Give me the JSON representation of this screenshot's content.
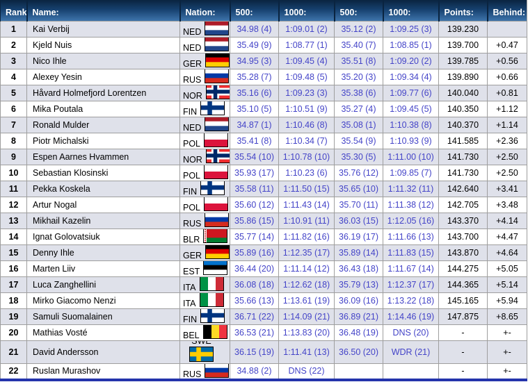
{
  "table": {
    "columns": [
      "Rank:",
      "Name:",
      "Nation:",
      "500:",
      "1000:",
      "500:",
      "1000:",
      "Points:",
      "Behind:"
    ],
    "rows": [
      {
        "rank": "1",
        "name": "Kai Verbij",
        "nation": "NED",
        "r500a": "34.98 (4)",
        "r1000a": "1:09.01 (2)",
        "r500b": "35.12 (2)",
        "r1000b": "1:09.25 (3)",
        "points": "139.230",
        "behind": ""
      },
      {
        "rank": "2",
        "name": "Kjeld Nuis",
        "nation": "NED",
        "r500a": "35.49 (9)",
        "r1000a": "1:08.77 (1)",
        "r500b": "35.40 (7)",
        "r1000b": "1:08.85 (1)",
        "points": "139.700",
        "behind": "+0.47"
      },
      {
        "rank": "3",
        "name": "Nico Ihle",
        "nation": "GER",
        "r500a": "34.95 (3)",
        "r1000a": "1:09.45 (4)",
        "r500b": "35.51 (8)",
        "r1000b": "1:09.20 (2)",
        "points": "139.785",
        "behind": "+0.56"
      },
      {
        "rank": "4",
        "name": "Alexey Yesin",
        "nation": "RUS",
        "r500a": "35.28 (7)",
        "r1000a": "1:09.48 (5)",
        "r500b": "35.20 (3)",
        "r1000b": "1:09.34 (4)",
        "points": "139.890",
        "behind": "+0.66"
      },
      {
        "rank": "5",
        "name": "Håvard Holmefjord Lorentzen",
        "nation": "NOR",
        "r500a": "35.16 (6)",
        "r1000a": "1:09.23 (3)",
        "r500b": "35.38 (6)",
        "r1000b": "1:09.77 (6)",
        "points": "140.040",
        "behind": "+0.81"
      },
      {
        "rank": "6",
        "name": "Mika Poutala",
        "nation": "FIN",
        "r500a": "35.10 (5)",
        "r1000a": "1:10.51 (9)",
        "r500b": "35.27 (4)",
        "r1000b": "1:09.45 (5)",
        "points": "140.350",
        "behind": "+1.12"
      },
      {
        "rank": "7",
        "name": "Ronald Mulder",
        "nation": "NED",
        "r500a": "34.87 (1)",
        "r1000a": "1:10.46 (8)",
        "r500b": "35.08 (1)",
        "r1000b": "1:10.38 (8)",
        "points": "140.370",
        "behind": "+1.14"
      },
      {
        "rank": "8",
        "name": "Piotr Michalski",
        "nation": "POL",
        "r500a": "35.41 (8)",
        "r1000a": "1:10.34 (7)",
        "r500b": "35.54 (9)",
        "r1000b": "1:10.93 (9)",
        "points": "141.585",
        "behind": "+2.36"
      },
      {
        "rank": "9",
        "name": "Espen Aarnes Hvammen",
        "nation": "NOR",
        "r500a": "35.54 (10)",
        "r1000a": "1:10.78 (10)",
        "r500b": "35.30 (5)",
        "r1000b": "1:11.00 (10)",
        "points": "141.730",
        "behind": "+2.50"
      },
      {
        "rank": "10",
        "name": "Sebastian Klosinski",
        "nation": "POL",
        "r500a": "35.93 (17)",
        "r1000a": "1:10.23 (6)",
        "r500b": "35.76 (12)",
        "r1000b": "1:09.85 (7)",
        "points": "141.730",
        "behind": "+2.50"
      },
      {
        "rank": "11",
        "name": "Pekka Koskela",
        "nation": "FIN",
        "r500a": "35.58 (11)",
        "r1000a": "1:11.50 (15)",
        "r500b": "35.65 (10)",
        "r1000b": "1:11.32 (11)",
        "points": "142.640",
        "behind": "+3.41"
      },
      {
        "rank": "12",
        "name": "Artur Nogal",
        "nation": "POL",
        "r500a": "35.60 (12)",
        "r1000a": "1:11.43 (14)",
        "r500b": "35.70 (11)",
        "r1000b": "1:11.38 (12)",
        "points": "142.705",
        "behind": "+3.48"
      },
      {
        "rank": "13",
        "name": "Mikhail Kazelin",
        "nation": "RUS",
        "r500a": "35.86 (15)",
        "r1000a": "1:10.91 (11)",
        "r500b": "36.03 (15)",
        "r1000b": "1:12.05 (16)",
        "points": "143.370",
        "behind": "+4.14"
      },
      {
        "rank": "14",
        "name": "Ignat Golovatsiuk",
        "nation": "BLR",
        "r500a": "35.77 (14)",
        "r1000a": "1:11.82 (16)",
        "r500b": "36.19 (17)",
        "r1000b": "1:11.66 (13)",
        "points": "143.700",
        "behind": "+4.47"
      },
      {
        "rank": "15",
        "name": "Denny Ihle",
        "nation": "GER",
        "r500a": "35.89 (16)",
        "r1000a": "1:12.35 (17)",
        "r500b": "35.89 (14)",
        "r1000b": "1:11.83 (15)",
        "points": "143.870",
        "behind": "+4.64"
      },
      {
        "rank": "16",
        "name": "Marten Liiv",
        "nation": "EST",
        "r500a": "36.44 (20)",
        "r1000a": "1:11.14 (12)",
        "r500b": "36.43 (18)",
        "r1000b": "1:11.67 (14)",
        "points": "144.275",
        "behind": "+5.05"
      },
      {
        "rank": "17",
        "name": "Luca Zanghellini",
        "nation": "ITA",
        "r500a": "36.08 (18)",
        "r1000a": "1:12.62 (18)",
        "r500b": "35.79 (13)",
        "r1000b": "1:12.37 (17)",
        "points": "144.365",
        "behind": "+5.14"
      },
      {
        "rank": "18",
        "name": "Mirko Giacomo Nenzi",
        "nation": "ITA",
        "r500a": "35.66 (13)",
        "r1000a": "1:13.61 (19)",
        "r500b": "36.09 (16)",
        "r1000b": "1:13.22 (18)",
        "points": "145.165",
        "behind": "+5.94"
      },
      {
        "rank": "19",
        "name": "Samuli Suomalainen",
        "nation": "FIN",
        "r500a": "36.71 (22)",
        "r1000a": "1:14.09 (21)",
        "r500b": "36.89 (21)",
        "r1000b": "1:14.46 (19)",
        "points": "147.875",
        "behind": "+8.65"
      },
      {
        "rank": "20",
        "name": "Mathias Vosté",
        "nation": "BEL",
        "r500a": "36.53 (21)",
        "r1000a": "1:13.83 (20)",
        "r500b": "36.48 (19)",
        "r1000b": "DNS (20)",
        "points": "-",
        "behind": "+-"
      },
      {
        "rank": "21",
        "name": "David Andersson",
        "nation": "SWE",
        "nation_stacked": true,
        "r500a": "36.15 (19)",
        "r1000a": "1:11.41 (13)",
        "r500b": "36.50 (20)",
        "r1000b": "WDR (21)",
        "points": "-",
        "behind": "+-"
      },
      {
        "rank": "22",
        "name": "Ruslan Murashov",
        "nation": "RUS",
        "r500a": "34.88 (2)",
        "r1000a": "DNS (22)",
        "r500b": "",
        "r1000b": "",
        "points": "-",
        "behind": "+-"
      }
    ]
  },
  "colors": {
    "header_gradient_top": "#0a2440",
    "header_gradient_mid": "#16406e",
    "header_gradient_bottom": "#3e74ab",
    "header_text": "#ffffff",
    "row_odd_bg": "#dfe1ea",
    "row_even_bg": "#ffffff",
    "grid_line": "#9e9e9e",
    "time_link": "#4444c8",
    "bottom_border": "#2333ab",
    "body_text": "#000000"
  },
  "flags": {
    "NED": {
      "type": "h",
      "colors": [
        "#AE1C28",
        "#FFFFFF",
        "#21468B"
      ]
    },
    "GER": {
      "type": "h",
      "colors": [
        "#000000",
        "#DD0000",
        "#FFCE00"
      ]
    },
    "RUS": {
      "type": "h",
      "colors": [
        "#FFFFFF",
        "#0039A6",
        "#D52B1E"
      ]
    },
    "NOR": {
      "type": "cross",
      "colors": [
        "#EF2B2D",
        "#FFFFFF",
        "#002868"
      ]
    },
    "FIN": {
      "type": "cross",
      "colors": [
        "#FFFFFF",
        "#003580"
      ]
    },
    "POL": {
      "type": "h",
      "colors": [
        "#FFFFFF",
        "#DC143C"
      ]
    },
    "BLR": {
      "type": "blr",
      "colors": [
        "#CE1720",
        "#007C30",
        "#FFFFFF"
      ]
    },
    "EST": {
      "type": "h",
      "colors": [
        "#0072CE",
        "#000000",
        "#FFFFFF"
      ]
    },
    "ITA": {
      "type": "v",
      "colors": [
        "#009246",
        "#FFFFFF",
        "#CE2B37"
      ]
    },
    "BEL": {
      "type": "v",
      "colors": [
        "#000000",
        "#FDDA24",
        "#EF3340"
      ]
    },
    "SWE": {
      "type": "cross",
      "colors": [
        "#006AA7",
        "#FECC00"
      ]
    }
  }
}
